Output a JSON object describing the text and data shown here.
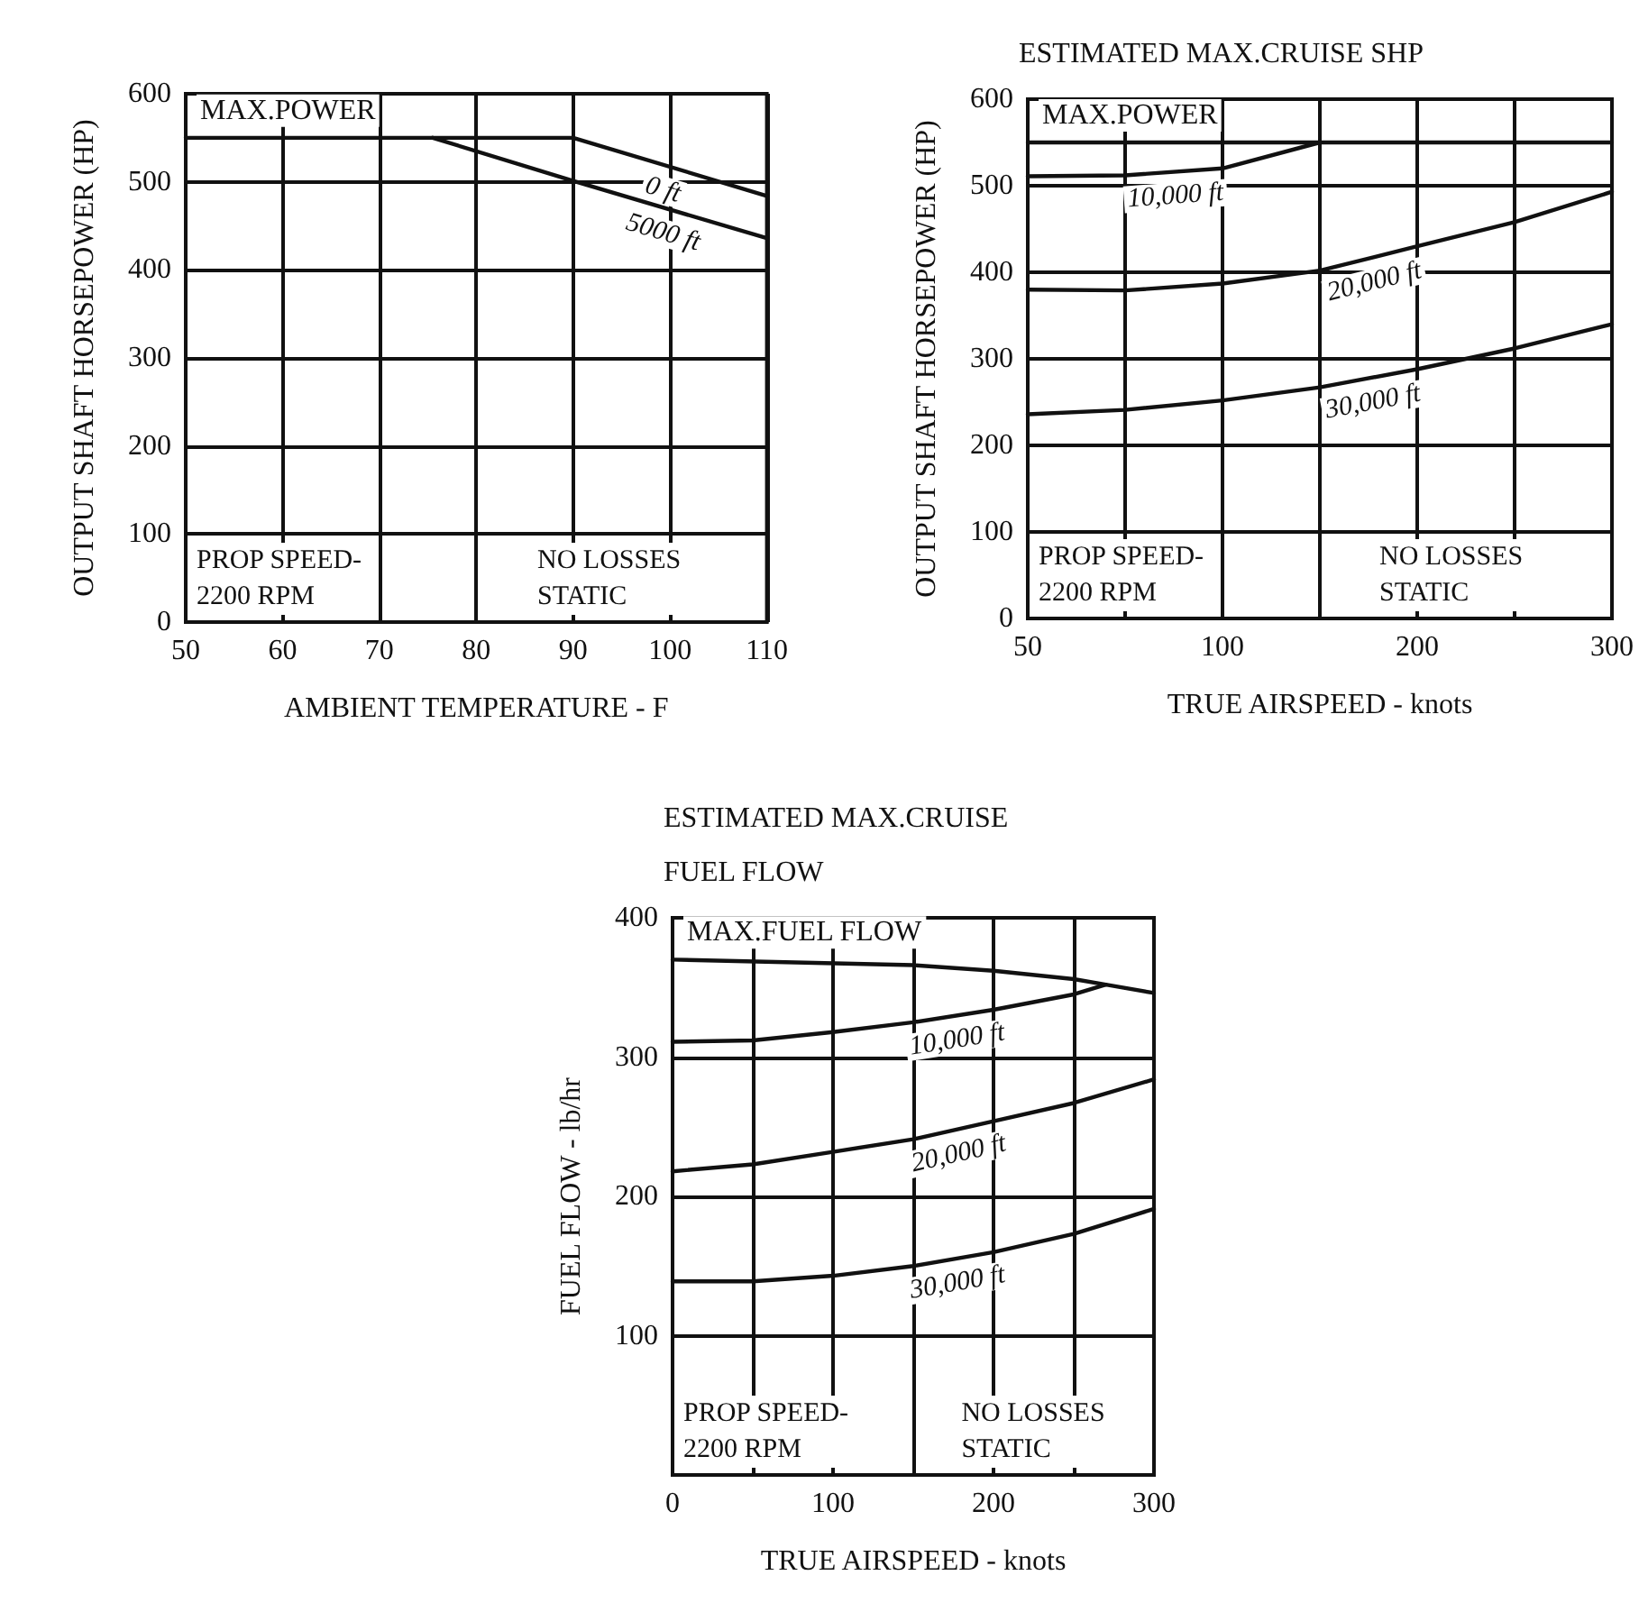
{
  "chart_data": [
    {
      "type": "line",
      "xlabel": "AMBIENT TEMPERATURE - F",
      "ylabel": "OUTPUT SHAFT HORSEPOWER (HP)",
      "series": [
        {
          "name": "0 ft",
          "color": "#111111",
          "x": [
            50,
            90,
            110
          ],
          "values": [
            550,
            550,
            484
          ]
        },
        {
          "name": "5000 ft",
          "color": "#111111",
          "x": [
            75.5,
            90,
            110
          ],
          "values": [
            550,
            501,
            436
          ]
        }
      ],
      "xlim": [
        50,
        110
      ],
      "xticks": [
        50,
        60,
        70,
        80,
        90,
        100,
        110
      ],
      "ylim": [
        0,
        600
      ],
      "yticks": [
        0,
        100,
        200,
        300,
        400,
        500,
        600
      ],
      "grid": true,
      "legend": false,
      "marker": "none",
      "line_style": "solid",
      "annotations": [
        "PROP SPEED-\n2200 RPM",
        "NO LOSSES\nSTATIC",
        {
          "text": "MAX.POWER",
          "x": 50,
          "y": 550
        }
      ]
    },
    {
      "type": "line",
      "title": "ESTIMATED MAX.CRUISE SHP",
      "xlabel": "TRUE AIRSPEED - knots",
      "ylabel": "OUTPUT SHAFT HORSEPOWER (HP)",
      "categories": [
        "50",
        null,
        "100",
        null,
        "200",
        null,
        "300"
      ],
      "series": [
        {
          "name": "MAX.POWER",
          "color": "#111111",
          "values": [
            550,
            550,
            550,
            550,
            550,
            550,
            550
          ]
        },
        {
          "name": "10,000 ft",
          "color": "#111111",
          "values": [
            511,
            512,
            520,
            550,
            null,
            null,
            null
          ]
        },
        {
          "name": "20,000 ft",
          "color": "#111111",
          "values": [
            380,
            379,
            387,
            402,
            430,
            458,
            493
          ]
        },
        {
          "name": "30,000 ft",
          "color": "#111111",
          "values": [
            236,
            241,
            252,
            267,
            288,
            312,
            340
          ]
        }
      ],
      "ylim": [
        0,
        600
      ],
      "yticks": [
        0,
        100,
        200,
        300,
        400,
        500,
        600
      ],
      "grid": true,
      "legend": false,
      "marker": "none",
      "line_style": "solid",
      "annotations": [
        "PROP SPEED-\n2200 RPM",
        "NO LOSSES\nSTATIC"
      ]
    },
    {
      "type": "line",
      "title": "ESTIMATED MAX.CRUISE\nFUEL FLOW",
      "xlabel": "TRUE AIRSPEED - knots",
      "ylabel": "FUEL FLOW - lb/hr",
      "series": [
        {
          "name": "MAX.FUEL FLOW",
          "color": "#111111",
          "x": [
            0,
            150,
            200,
            250,
            270,
            300
          ],
          "values": [
            370,
            366,
            362,
            356,
            352,
            346
          ]
        },
        {
          "name": "10,000 ft",
          "color": "#111111",
          "x": [
            0,
            50,
            100,
            150,
            200,
            250,
            270
          ],
          "values": [
            311,
            312,
            318,
            325,
            334,
            345,
            352
          ]
        },
        {
          "name": "20,000 ft",
          "color": "#111111",
          "x": [
            0,
            50,
            100,
            150,
            200,
            250,
            300
          ],
          "values": [
            218,
            223,
            232,
            241,
            254,
            267,
            284
          ]
        },
        {
          "name": "30,000 ft",
          "color": "#111111",
          "x": [
            0,
            50,
            100,
            150,
            200,
            250,
            300
          ],
          "values": [
            139,
            139,
            143,
            150,
            160,
            173,
            191
          ]
        }
      ],
      "xlim": [
        0,
        300
      ],
      "xticks": [
        0,
        {
          "value": 50,
          "label": null
        },
        100,
        {
          "value": 150,
          "label": null
        },
        200,
        {
          "value": 250,
          "label": null
        },
        300
      ],
      "ylim": [
        0,
        400
      ],
      "yticks": [
        100,
        200,
        300,
        400
      ],
      "grid": true,
      "legend": false,
      "marker": "none",
      "line_style": "solid",
      "annotations": [
        "PROP SPEED-\n2200 RPM",
        "NO LOSSES\nSTATIC"
      ]
    }
  ]
}
